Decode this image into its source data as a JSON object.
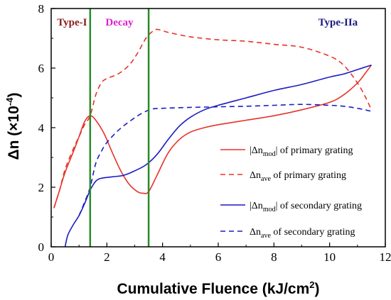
{
  "chart_data": {
    "type": "line",
    "title": "",
    "xlabel": "Cumulative Fluence (kJ/cm²)",
    "xlabel_main": "Cumulative Fluence (kJ/cm",
    "xlabel_sup": "2",
    "xlabel_tail": ")",
    "ylabel": "Δn (×10⁻⁴)",
    "ylabel_main": "Δn (×10",
    "ylabel_sup": "-4",
    "ylabel_tail": ")",
    "xlim": [
      0,
      12
    ],
    "ylim": [
      0,
      8
    ],
    "xticks": [
      "0",
      "2",
      "4",
      "6",
      "8",
      "10",
      "12"
    ],
    "yticks": [
      "0",
      "2",
      "4",
      "6",
      "8"
    ],
    "grid": false,
    "legend_position": "right-middle",
    "vlines": [
      1.4,
      3.5
    ],
    "vline_color": "#2a8a2a",
    "regions": [
      {
        "label": "Type-I",
        "color": "#8b1a1a",
        "x": 0.75
      },
      {
        "label": "Decay",
        "color": "#e020d0",
        "x": 2.45
      },
      {
        "label": "Type-IIa",
        "color": "#1a1a80",
        "x": 10.3
      }
    ],
    "legend": [
      {
        "pre": "|Δn",
        "sub": "mod",
        "post": "| of primary grating"
      },
      {
        "pre": "Δn",
        "sub": "ave",
        "post": "  of primary grating"
      },
      {
        "pre": "|Δn",
        "sub": "mod",
        "post": "| of secondary grating"
      },
      {
        "pre": "Δn",
        "sub": "ave",
        "post": "  of  secondary grating"
      }
    ],
    "series": [
      {
        "color": "#e8322a",
        "dash": "solid",
        "points": [
          [
            0.1,
            1.3
          ],
          [
            0.3,
            1.9
          ],
          [
            0.5,
            2.5
          ],
          [
            0.8,
            3.2
          ],
          [
            1.0,
            3.7
          ],
          [
            1.2,
            4.2
          ],
          [
            1.4,
            4.4
          ],
          [
            1.6,
            4.25
          ],
          [
            1.9,
            3.8
          ],
          [
            2.2,
            3.15
          ],
          [
            2.5,
            2.55
          ],
          [
            2.8,
            2.1
          ],
          [
            3.1,
            1.85
          ],
          [
            3.3,
            1.8
          ],
          [
            3.5,
            1.85
          ],
          [
            3.8,
            2.4
          ],
          [
            4.2,
            3.15
          ],
          [
            4.6,
            3.6
          ],
          [
            5.0,
            3.85
          ],
          [
            5.5,
            4.0
          ],
          [
            6.0,
            4.1
          ],
          [
            7.0,
            4.25
          ],
          [
            8.0,
            4.4
          ],
          [
            9.0,
            4.6
          ],
          [
            10.0,
            4.85
          ],
          [
            10.5,
            5.1
          ],
          [
            11.0,
            5.5
          ],
          [
            11.3,
            5.85
          ],
          [
            11.5,
            6.1
          ]
        ]
      },
      {
        "color": "#e8322a",
        "dash": "dashed",
        "points": [
          [
            0.1,
            1.3
          ],
          [
            0.3,
            1.9
          ],
          [
            0.5,
            2.6
          ],
          [
            0.8,
            3.3
          ],
          [
            1.0,
            3.7
          ],
          [
            1.2,
            4.1
          ],
          [
            1.4,
            4.4
          ],
          [
            1.6,
            5.1
          ],
          [
            1.8,
            5.5
          ],
          [
            2.0,
            5.65
          ],
          [
            2.4,
            5.8
          ],
          [
            2.8,
            6.1
          ],
          [
            3.1,
            6.5
          ],
          [
            3.4,
            7.0
          ],
          [
            3.6,
            7.2
          ],
          [
            3.8,
            7.3
          ],
          [
            4.2,
            7.2
          ],
          [
            5.0,
            7.05
          ],
          [
            6.0,
            6.95
          ],
          [
            7.0,
            6.9
          ],
          [
            8.0,
            6.8
          ],
          [
            9.0,
            6.7
          ],
          [
            10.0,
            6.4
          ],
          [
            10.5,
            6.1
          ],
          [
            11.0,
            5.5
          ],
          [
            11.3,
            5.0
          ],
          [
            11.5,
            4.6
          ]
        ]
      },
      {
        "color": "#1c1cc4",
        "dash": "solid",
        "points": [
          [
            0.5,
            0.0
          ],
          [
            0.6,
            0.4
          ],
          [
            0.8,
            0.75
          ],
          [
            1.0,
            1.05
          ],
          [
            1.2,
            1.45
          ],
          [
            1.4,
            1.9
          ],
          [
            1.6,
            2.2
          ],
          [
            1.8,
            2.3
          ],
          [
            2.2,
            2.35
          ],
          [
            2.6,
            2.4
          ],
          [
            3.0,
            2.55
          ],
          [
            3.4,
            2.75
          ],
          [
            3.8,
            3.1
          ],
          [
            4.2,
            3.6
          ],
          [
            4.6,
            4.05
          ],
          [
            5.0,
            4.35
          ],
          [
            5.5,
            4.6
          ],
          [
            6.0,
            4.75
          ],
          [
            7.0,
            5.0
          ],
          [
            8.0,
            5.25
          ],
          [
            9.0,
            5.45
          ],
          [
            10.0,
            5.7
          ],
          [
            10.5,
            5.8
          ],
          [
            11.0,
            5.95
          ],
          [
            11.5,
            6.1
          ]
        ]
      },
      {
        "color": "#1c1cc4",
        "dash": "dashed",
        "points": [
          [
            1.0,
            1.05
          ],
          [
            1.2,
            1.5
          ],
          [
            1.4,
            2.0
          ],
          [
            1.6,
            2.8
          ],
          [
            1.8,
            3.2
          ],
          [
            2.0,
            3.5
          ],
          [
            2.4,
            3.9
          ],
          [
            2.8,
            4.2
          ],
          [
            3.2,
            4.45
          ],
          [
            3.6,
            4.62
          ],
          [
            4.0,
            4.65
          ],
          [
            5.0,
            4.68
          ],
          [
            6.0,
            4.7
          ],
          [
            7.0,
            4.72
          ],
          [
            8.0,
            4.75
          ],
          [
            9.0,
            4.78
          ],
          [
            10.0,
            4.75
          ],
          [
            10.5,
            4.72
          ],
          [
            11.0,
            4.65
          ],
          [
            11.5,
            4.55
          ]
        ]
      }
    ]
  }
}
